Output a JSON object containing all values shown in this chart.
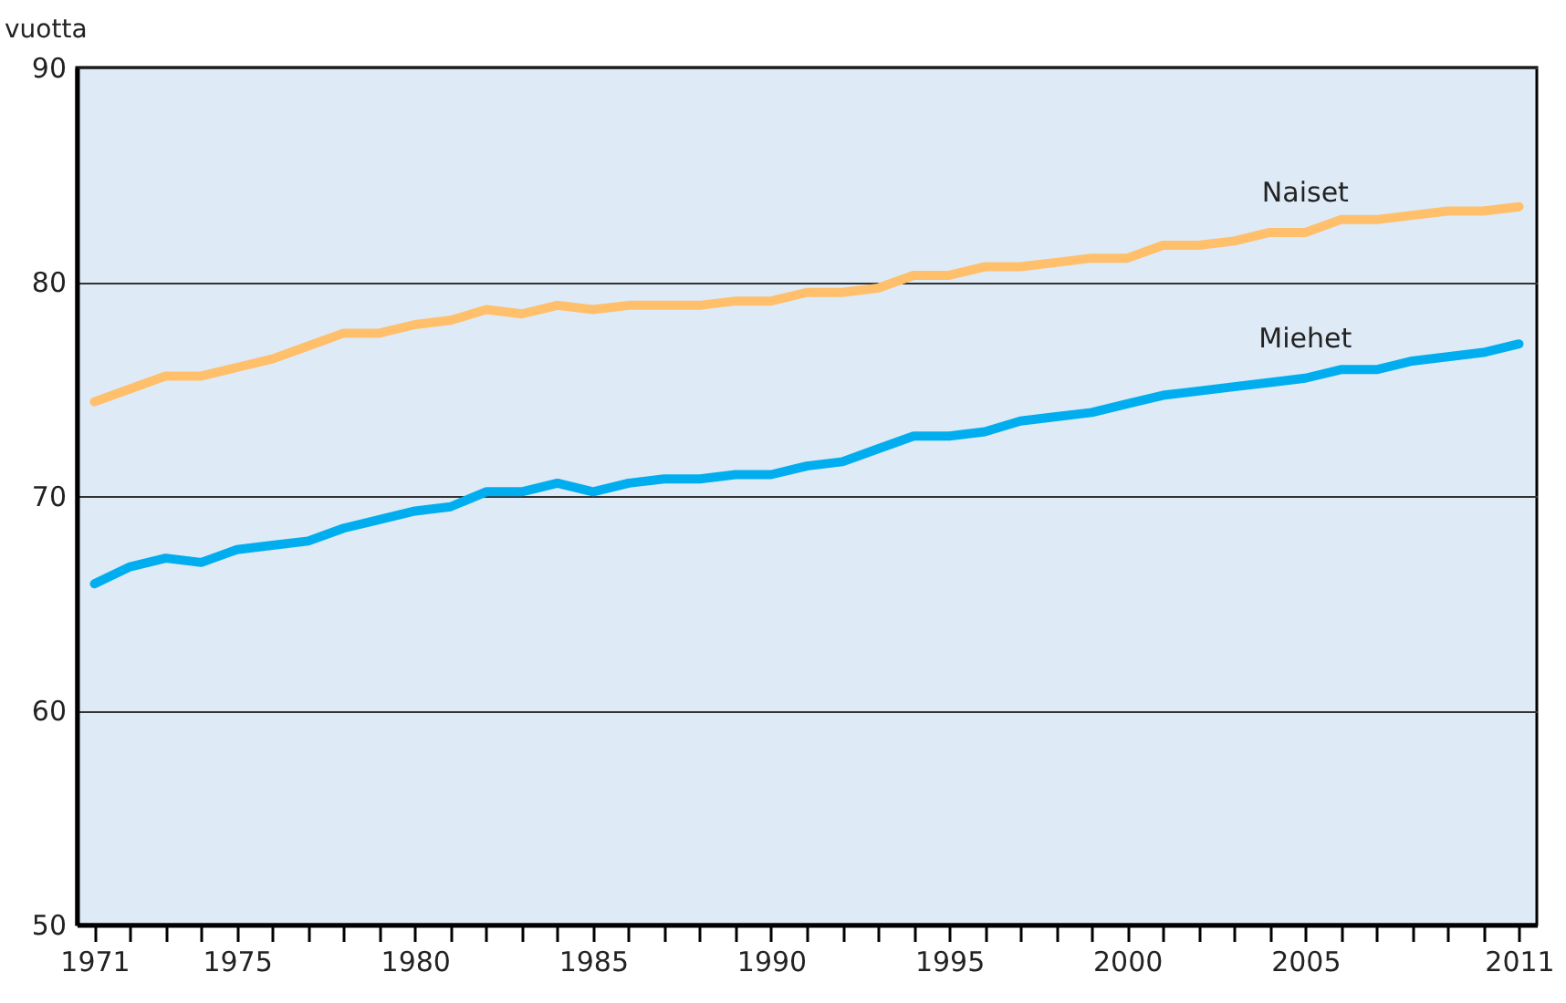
{
  "chart_data": {
    "type": "line",
    "ylabel": "vuotta",
    "x": [
      1971,
      1972,
      1973,
      1974,
      1975,
      1976,
      1977,
      1978,
      1979,
      1980,
      1981,
      1982,
      1983,
      1984,
      1985,
      1986,
      1987,
      1988,
      1989,
      1990,
      1991,
      1992,
      1993,
      1994,
      1995,
      1996,
      1997,
      1998,
      1999,
      2000,
      2001,
      2002,
      2003,
      2004,
      2005,
      2006,
      2007,
      2008,
      2009,
      2010,
      2011
    ],
    "series": [
      {
        "name": "Naiset",
        "color": "#ffbf6b",
        "values": [
          74.4,
          75.0,
          75.6,
          75.6,
          76.0,
          76.4,
          77.0,
          77.6,
          77.6,
          78.0,
          78.2,
          78.7,
          78.5,
          78.9,
          78.7,
          78.9,
          78.9,
          78.9,
          79.1,
          79.1,
          79.5,
          79.5,
          79.7,
          80.3,
          80.3,
          80.7,
          80.7,
          80.9,
          81.1,
          81.1,
          81.7,
          81.7,
          81.9,
          82.3,
          82.3,
          82.9,
          82.9,
          83.1,
          83.3,
          83.3,
          83.5
        ]
      },
      {
        "name": "Miehet",
        "color": "#00aeef",
        "values": [
          65.9,
          66.7,
          67.1,
          66.9,
          67.5,
          67.7,
          67.9,
          68.5,
          68.9,
          69.3,
          69.5,
          70.2,
          70.2,
          70.6,
          70.2,
          70.6,
          70.8,
          70.8,
          71.0,
          71.0,
          71.4,
          71.6,
          72.2,
          72.8,
          72.8,
          73.0,
          73.5,
          73.7,
          73.9,
          74.3,
          74.7,
          74.9,
          75.1,
          75.3,
          75.5,
          75.9,
          75.9,
          76.3,
          76.5,
          76.7,
          77.1
        ]
      }
    ],
    "xlim": [
      1970.5,
      2011.5
    ],
    "xticks": [
      1971,
      {
        "value": 1972,
        "label": null
      },
      {
        "value": 1973,
        "label": null
      },
      {
        "value": 1974,
        "label": null
      },
      1975,
      {
        "value": 1976,
        "label": null
      },
      {
        "value": 1977,
        "label": null
      },
      {
        "value": 1978,
        "label": null
      },
      {
        "value": 1979,
        "label": null
      },
      1980,
      {
        "value": 1981,
        "label": null
      },
      {
        "value": 1982,
        "label": null
      },
      {
        "value": 1983,
        "label": null
      },
      {
        "value": 1984,
        "label": null
      },
      1985,
      {
        "value": 1986,
        "label": null
      },
      {
        "value": 1987,
        "label": null
      },
      {
        "value": 1988,
        "label": null
      },
      {
        "value": 1989,
        "label": null
      },
      1990,
      {
        "value": 1991,
        "label": null
      },
      {
        "value": 1992,
        "label": null
      },
      {
        "value": 1993,
        "label": null
      },
      {
        "value": 1994,
        "label": null
      },
      1995,
      {
        "value": 1996,
        "label": null
      },
      {
        "value": 1997,
        "label": null
      },
      {
        "value": 1998,
        "label": null
      },
      {
        "value": 1999,
        "label": null
      },
      2000,
      {
        "value": 2001,
        "label": null
      },
      {
        "value": 2002,
        "label": null
      },
      {
        "value": 2003,
        "label": null
      },
      {
        "value": 2004,
        "label": null
      },
      2005,
      {
        "value": 2006,
        "label": null
      },
      {
        "value": 2007,
        "label": null
      },
      {
        "value": 2008,
        "label": null
      },
      {
        "value": 2009,
        "label": null
      },
      {
        "value": 2010,
        "label": null
      },
      2011
    ],
    "ylim": [
      50,
      90
    ],
    "yticks": [
      50,
      60,
      70,
      80,
      90
    ],
    "grid": "y",
    "line_style": "solid"
  }
}
